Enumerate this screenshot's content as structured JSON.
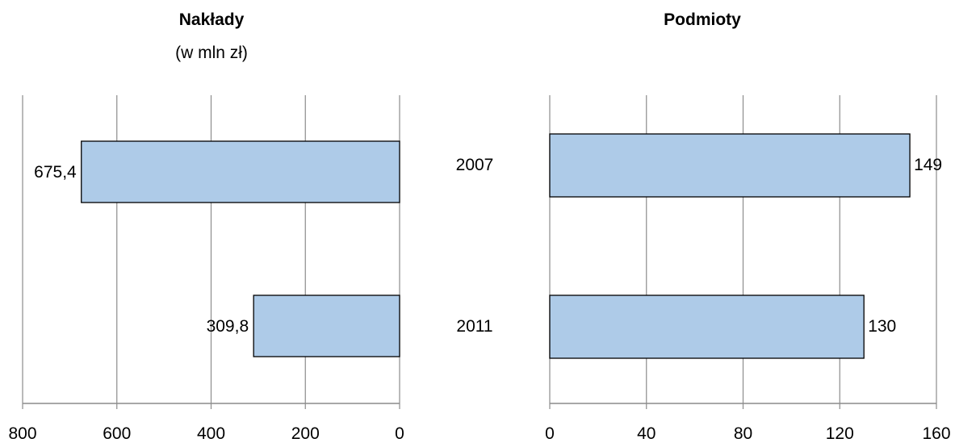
{
  "chart_data": [
    {
      "type": "bar",
      "orientation": "horizontal",
      "reversed_x": true,
      "title": "Nakłady",
      "subtitle": "(w mln zł)",
      "categories": [
        "2007",
        "2011"
      ],
      "values": [
        675.4,
        309.8
      ],
      "value_labels": [
        "675,4",
        "309,8"
      ],
      "xlim": [
        0,
        800
      ],
      "x_ticks": [
        0,
        200,
        400,
        600,
        800
      ],
      "x_tick_labels": [
        "0",
        "200",
        "400",
        "600",
        "800"
      ],
      "grid": true,
      "bar_color": "#aecbe8"
    },
    {
      "type": "bar",
      "orientation": "horizontal",
      "title": "Podmioty",
      "categories": [
        "2007",
        "2011"
      ],
      "values": [
        149,
        130
      ],
      "value_labels": [
        "149",
        "130"
      ],
      "xlim": [
        0,
        160
      ],
      "x_ticks": [
        0,
        40,
        80,
        120,
        160
      ],
      "x_tick_labels": [
        "0",
        "40",
        "80",
        "120",
        "160"
      ],
      "grid": true,
      "bar_color": "#aecbe8"
    }
  ]
}
